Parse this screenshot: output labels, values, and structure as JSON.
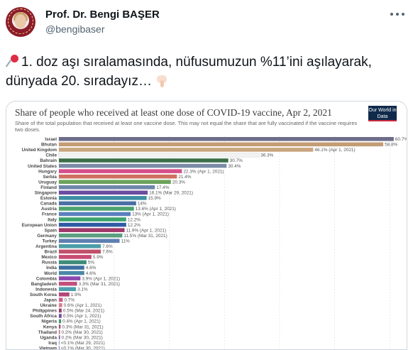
{
  "tweet": {
    "display_name": "Prof. Dr. Bengi BAŞER",
    "handle": "@bengibaser",
    "text": "1. doz aşı sıralamasında, nüfusumuzun %11’ini aşılayarak, dünyada 20. sıradayız…",
    "icons": [
      "pushpin-icon",
      "backhand-index-pointing-down-icon",
      "more-icon"
    ]
  },
  "media": {
    "logo_text": "Our World in Data"
  },
  "chart_data": {
    "type": "bar",
    "orientation": "horizontal",
    "title": "Share of people who received at least one dose of COVID-19 vaccine, Apr 2, 2021",
    "subtitle": "Share of the total population that received at least one vaccine dose. This may not equal the share that are fully vaccinated if the vaccine requires two doses.",
    "xlim": [
      0,
      62
    ],
    "grid": true,
    "categories": [
      "Israel",
      "Bhutan",
      "United Kingdom",
      "Chile",
      "Bahrain",
      "United States",
      "Hungary",
      "Serbia",
      "Uruguay",
      "Finland",
      "Singapore",
      "Estonia",
      "Canada",
      "Austria",
      "France",
      "Italy",
      "European Union",
      "Spain",
      "Germany",
      "Turkey",
      "Argentina",
      "Brazil",
      "Mexico",
      "Russia",
      "India",
      "World",
      "Colombia",
      "Bangladesh",
      "Indonesia",
      "South Korea",
      "Japan",
      "Ukraine",
      "Philippines",
      "South Africa",
      "Nigeria",
      "Kenya",
      "Thailand",
      "Uganda",
      "Iraq",
      "Vietnam"
    ],
    "values": [
      60.7,
      58.8,
      46.1,
      36.3,
      30.7,
      30.4,
      22.3,
      21.4,
      20.3,
      17.4,
      16.1,
      15.9,
      14.0,
      13.6,
      13.0,
      12.2,
      12.2,
      11.9,
      11.5,
      11.0,
      7.6,
      7.6,
      5.9,
      5.0,
      4.6,
      4.6,
      3.9,
      3.3,
      3.1,
      1.9,
      0.7,
      0.6,
      0.5,
      0.5,
      0.4,
      0.3,
      0.2,
      0.2,
      0.1,
      0.1
    ],
    "labels": [
      "60.7% (Apr 1, 2021)",
      "58.8%",
      "46.1% (Apr 1, 2021)",
      "36.3%",
      "30.7%",
      "30.4%",
      "22.3% (Apr 1, 2021)",
      "21.4%",
      "20.3%",
      "17.4%",
      "16.1% (Mar 29, 2021)",
      "15.9%",
      "14%",
      "13.6% (Apr 1, 2021)",
      "13% (Apr 1, 2021)",
      "12.2%",
      "12.2%",
      "11.9% (Apr 1, 2021)",
      "11.5% (Mar 31, 2021)",
      "11%",
      "7.6%",
      "7.6%",
      "5.9%",
      "5%",
      "4.6%",
      "4.6%",
      "3.9% (Apr 1, 2021)",
      "3.3% (Mar 31, 2021)",
      "3.1%",
      "1.9%",
      "0.7%",
      "0.6% (Apr 1, 2021)",
      "0.5% (Mar 24, 2021)",
      "0.5% (Apr 1, 2021)",
      "0.4% (Apr 1, 2021)",
      "0.3% (Mar 31, 2021)",
      "0.2% (Mar 30, 2021)",
      "0.2% (Mar 30, 2021)",
      "<0.1% (Mar 29, 2021)",
      "<0.1% (Mar 30, 2021)"
    ],
    "colors": [
      "#6d6d8a",
      "#c39c74",
      "#c9a57e",
      "#f2f2f2",
      "#3b6f48",
      "#7a8ca7",
      "#d64f8a",
      "#d06f60",
      "#6ca35b",
      "#6f86ab",
      "#6a4ca0",
      "#3d8fa3",
      "#4a6fa5",
      "#4da36f",
      "#5a7fbf",
      "#3ba36c",
      "#2f5ba6",
      "#a0386a",
      "#5a9f7e",
      "#5e7fb0",
      "#4d9da8",
      "#c0506c",
      "#c74b73",
      "#3f8c7a",
      "#3d6fa0",
      "#4a88a8",
      "#8a48b0",
      "#c1507a",
      "#4f9fb0",
      "#b3477a",
      "#d15a8a",
      "#e07c8f",
      "#9a4070",
      "#7b4fa0",
      "#3a9f68",
      "#a0507a",
      "#c86a88",
      "#7a4fa8",
      "#5a8fb0",
      "#6a5aa8"
    ]
  }
}
